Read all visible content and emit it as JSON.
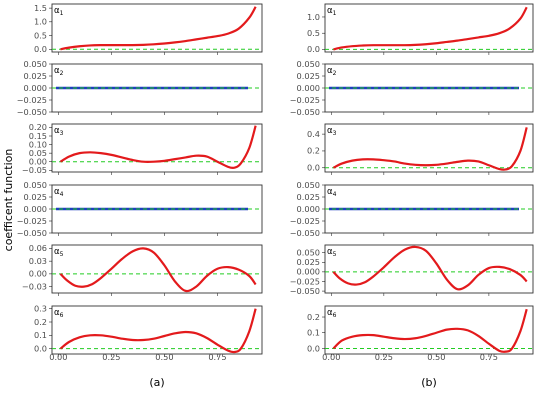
{
  "figure": {
    "ylabel": "coefficent function",
    "colors": {
      "estimate": "#e31a1c",
      "zero": "#22cc22",
      "blue": "#1f3fbf"
    }
  },
  "chart_data": [
    {
      "type": "line",
      "sublabel": "(a)",
      "xlabel": "",
      "ylabel": "coefficent function",
      "xlim": [
        -0.03,
        0.96
      ],
      "x_ticks": [
        "0.00",
        "0.25",
        "0.50",
        "0.75"
      ],
      "panels": [
        {
          "label": "α1",
          "ylim": [
            -0.1,
            1.65
          ],
          "y_ticks": [
            "0.0",
            "0.5",
            "1.0",
            "1.5"
          ],
          "x": [
            0.01,
            0.05,
            0.1,
            0.15,
            0.2,
            0.25,
            0.3,
            0.35,
            0.4,
            0.45,
            0.5,
            0.55,
            0.6,
            0.65,
            0.7,
            0.75,
            0.8,
            0.85,
            0.9,
            0.93
          ],
          "y": [
            0.0,
            0.06,
            0.11,
            0.14,
            0.15,
            0.15,
            0.15,
            0.15,
            0.16,
            0.18,
            0.21,
            0.25,
            0.3,
            0.36,
            0.42,
            0.48,
            0.57,
            0.75,
            1.15,
            1.55
          ]
        },
        {
          "label": "α2",
          "ylim": [
            -0.05,
            0.05
          ],
          "y_ticks": [
            "−0.050",
            "−0.025",
            "0.000",
            "0.025",
            "0.050"
          ],
          "x": [
            0.01,
            0.93
          ],
          "y": [
            0.0,
            0.0
          ],
          "blue_zero": true
        },
        {
          "label": "α3",
          "ylim": [
            -0.06,
            0.22
          ],
          "y_ticks": [
            "−0.05",
            "0.00",
            "0.05",
            "0.10",
            "0.15",
            "0.20"
          ],
          "x": [
            0.01,
            0.05,
            0.1,
            0.15,
            0.2,
            0.25,
            0.3,
            0.35,
            0.4,
            0.45,
            0.5,
            0.55,
            0.6,
            0.65,
            0.7,
            0.75,
            0.8,
            0.83,
            0.86,
            0.9,
            0.93
          ],
          "y": [
            0.0,
            0.03,
            0.05,
            0.055,
            0.05,
            0.04,
            0.025,
            0.01,
            0.0,
            0.0,
            0.005,
            0.015,
            0.025,
            0.035,
            0.03,
            0.0,
            -0.03,
            -0.035,
            -0.01,
            0.08,
            0.21
          ]
        },
        {
          "label": "α4",
          "ylim": [
            -0.05,
            0.05
          ],
          "y_ticks": [
            "−0.050",
            "−0.025",
            "0.000",
            "0.025",
            "0.050"
          ],
          "x": [
            0.01,
            0.93
          ],
          "y": [
            0.0,
            0.0
          ],
          "blue_zero": true
        },
        {
          "label": "α5",
          "ylim": [
            -0.045,
            0.068
          ],
          "y_ticks": [
            "−0.03",
            "0.00",
            "0.03",
            "0.06"
          ],
          "x": [
            0.01,
            0.04,
            0.08,
            0.12,
            0.16,
            0.2,
            0.25,
            0.3,
            0.35,
            0.4,
            0.45,
            0.5,
            0.55,
            0.6,
            0.65,
            0.7,
            0.75,
            0.8,
            0.85,
            0.9,
            0.93
          ],
          "y": [
            0.0,
            -0.015,
            -0.028,
            -0.03,
            -0.024,
            -0.01,
            0.012,
            0.035,
            0.053,
            0.06,
            0.05,
            0.02,
            -0.018,
            -0.04,
            -0.03,
            -0.005,
            0.012,
            0.016,
            0.01,
            -0.005,
            -0.025
          ]
        },
        {
          "label": "α6",
          "ylim": [
            -0.04,
            0.32
          ],
          "y_ticks": [
            "0.0",
            "0.1",
            "0.2",
            "0.3"
          ],
          "x": [
            0.01,
            0.05,
            0.1,
            0.15,
            0.2,
            0.25,
            0.3,
            0.35,
            0.4,
            0.45,
            0.5,
            0.55,
            0.6,
            0.65,
            0.7,
            0.75,
            0.8,
            0.83,
            0.86,
            0.9,
            0.93
          ],
          "y": [
            0.0,
            0.05,
            0.085,
            0.1,
            0.1,
            0.09,
            0.075,
            0.065,
            0.065,
            0.075,
            0.095,
            0.115,
            0.125,
            0.115,
            0.08,
            0.03,
            -0.015,
            -0.025,
            0.0,
            0.13,
            0.3
          ]
        }
      ]
    },
    {
      "type": "line",
      "sublabel": "(b)",
      "xlabel": "",
      "ylabel": "",
      "xlim": [
        -0.03,
        0.96
      ],
      "x_ticks": [
        "0.00",
        "0.25",
        "0.50",
        "0.75"
      ],
      "panels": [
        {
          "label": "α1",
          "ylim": [
            -0.08,
            1.4
          ],
          "y_ticks": [
            "0.0",
            "0.5",
            "1.0"
          ],
          "x": [
            0.01,
            0.05,
            0.1,
            0.15,
            0.2,
            0.25,
            0.3,
            0.35,
            0.4,
            0.45,
            0.5,
            0.55,
            0.6,
            0.65,
            0.7,
            0.75,
            0.8,
            0.85,
            0.9,
            0.93
          ],
          "y": [
            0.0,
            0.06,
            0.1,
            0.12,
            0.13,
            0.13,
            0.13,
            0.13,
            0.14,
            0.16,
            0.19,
            0.23,
            0.27,
            0.32,
            0.37,
            0.42,
            0.5,
            0.65,
            0.95,
            1.3
          ]
        },
        {
          "label": "α2",
          "ylim": [
            -0.05,
            0.05
          ],
          "y_ticks": [
            "−0.050",
            "−0.025",
            "0.000",
            "0.025",
            "0.050"
          ],
          "x": [
            0.01,
            0.93
          ],
          "y": [
            0.0,
            0.0
          ],
          "blue_zero": true
        },
        {
          "label": "α3",
          "ylim": [
            -0.05,
            0.52
          ],
          "y_ticks": [
            "0.0",
            "0.2",
            "0.4"
          ],
          "x": [
            0.01,
            0.05,
            0.1,
            0.15,
            0.2,
            0.25,
            0.3,
            0.35,
            0.4,
            0.45,
            0.5,
            0.55,
            0.6,
            0.65,
            0.7,
            0.75,
            0.8,
            0.83,
            0.86,
            0.9,
            0.93
          ],
          "y": [
            0.0,
            0.05,
            0.085,
            0.1,
            0.1,
            0.09,
            0.075,
            0.05,
            0.035,
            0.03,
            0.035,
            0.05,
            0.07,
            0.085,
            0.075,
            0.03,
            -0.015,
            -0.02,
            0.02,
            0.2,
            0.48
          ]
        },
        {
          "label": "α4",
          "ylim": [
            -0.05,
            0.05
          ],
          "y_ticks": [
            "−0.050",
            "−0.025",
            "0.000",
            "0.025",
            "0.050"
          ],
          "x": [
            0.01,
            0.93
          ],
          "y": [
            0.0,
            0.0
          ],
          "blue_zero": true
        },
        {
          "label": "α5",
          "ylim": [
            -0.055,
            0.07
          ],
          "y_ticks": [
            "−0.050",
            "−0.025",
            "0.000",
            "0.025",
            "0.050"
          ],
          "x": [
            0.01,
            0.04,
            0.08,
            0.12,
            0.16,
            0.2,
            0.25,
            0.3,
            0.35,
            0.4,
            0.45,
            0.5,
            0.55,
            0.6,
            0.65,
            0.7,
            0.75,
            0.8,
            0.85,
            0.9,
            0.93
          ],
          "y": [
            0.0,
            -0.017,
            -0.03,
            -0.033,
            -0.027,
            -0.012,
            0.012,
            0.038,
            0.058,
            0.065,
            0.055,
            0.022,
            -0.02,
            -0.045,
            -0.035,
            -0.008,
            0.01,
            0.013,
            0.007,
            -0.008,
            -0.025
          ]
        },
        {
          "label": "α6",
          "ylim": [
            -0.035,
            0.27
          ],
          "y_ticks": [
            "0.0",
            "0.1",
            "0.2"
          ],
          "x": [
            0.01,
            0.05,
            0.1,
            0.15,
            0.2,
            0.25,
            0.3,
            0.35,
            0.4,
            0.45,
            0.5,
            0.55,
            0.6,
            0.65,
            0.7,
            0.75,
            0.8,
            0.83,
            0.86,
            0.9,
            0.93
          ],
          "y": [
            0.0,
            0.05,
            0.075,
            0.085,
            0.085,
            0.075,
            0.065,
            0.06,
            0.065,
            0.08,
            0.1,
            0.12,
            0.125,
            0.115,
            0.08,
            0.03,
            -0.015,
            -0.02,
            0.0,
            0.11,
            0.25
          ]
        }
      ]
    }
  ]
}
